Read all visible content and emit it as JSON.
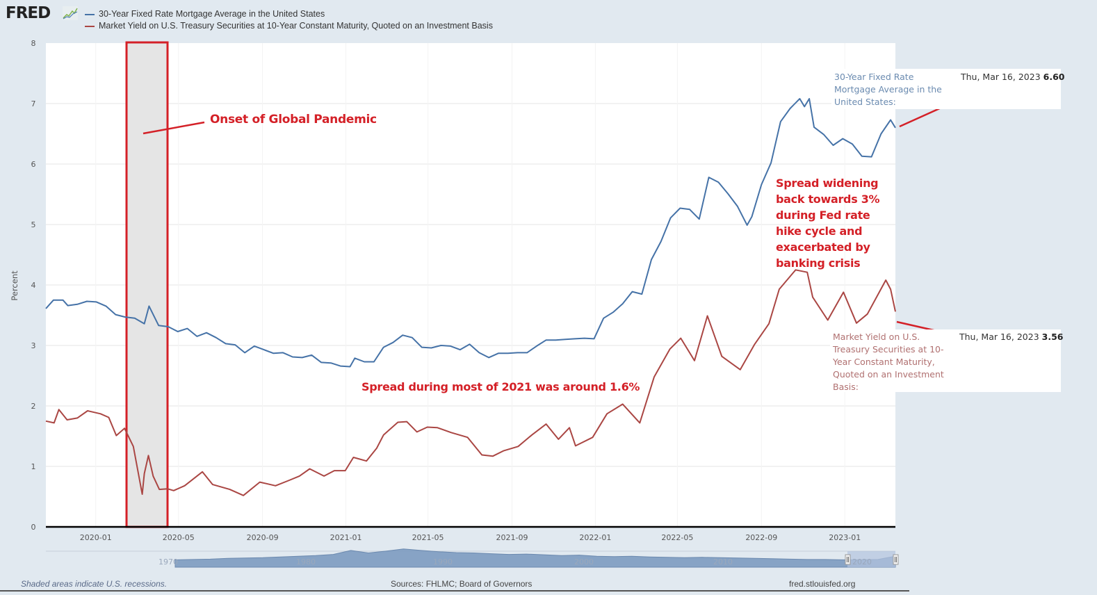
{
  "header": {
    "logo_text": "FRED",
    "logo_icon": "trend-line-chart-icon"
  },
  "legend": [
    {
      "label": "30-Year Fixed Rate Mortgage Average in the United States",
      "color": "#4572a7"
    },
    {
      "label": "Market Yield on U.S. Treasury Securities at 10-Year Constant Maturity, Quoted on an Investment Basis",
      "color": "#aa4643"
    }
  ],
  "tooltips": {
    "mortgage": {
      "name": "30-Year Fixed Rate Mortgage Average in the United States:",
      "date": "Thu, Mar 16, 2023",
      "value": "6.60"
    },
    "treasury": {
      "name": "Market Yield on U.S. Treasury Securities at 10-Year Constant Maturity, Quoted on an Investment Basis:",
      "date": "Thu, Mar 16, 2023",
      "value": "3.56"
    }
  },
  "annotations": {
    "pandemic": "Onset of Global Pandemic",
    "spread_2021": "Spread during most of 2021 was around 1.6%",
    "spread_widening": "Spread widening back towards 3% during Fed rate hike cycle and exacerbated by banking crisis",
    "highlight_color": "#d42027"
  },
  "footer": {
    "note": "Shaded areas indicate U.S. recessions.",
    "sources": "Sources: FHLMC; Board of Governors",
    "site": "fred.stlouisfed.org"
  },
  "navigator": {
    "labels": [
      "1970",
      "1980",
      "1990",
      "2000",
      "2010",
      "2020"
    ]
  },
  "chart_data": {
    "type": "line",
    "title": "",
    "xlabel": "",
    "ylabel": "Percent",
    "ylim": [
      0,
      8
    ],
    "yticks": [
      "0",
      "1",
      "2",
      "3",
      "4",
      "5",
      "6",
      "7",
      "8"
    ],
    "xlim": [
      "2019-10-20",
      "2023-03-16"
    ],
    "xticks": [
      "2020-01",
      "2020-05",
      "2020-09",
      "2021-01",
      "2021-05",
      "2021-09",
      "2022-01",
      "2022-05",
      "2022-09",
      "2023-01"
    ],
    "grid": true,
    "legend_position": "top-left",
    "recession": {
      "start": "2020-02-15",
      "end": "2020-04-15"
    },
    "series": [
      {
        "name": "30-Year Fixed Rate Mortgage Average in the United States",
        "color": "#4572a7",
        "points": [
          [
            "2019-10-20",
            3.61
          ],
          [
            "2019-10-31",
            3.75
          ],
          [
            "2019-11-14",
            3.75
          ],
          [
            "2019-11-21",
            3.66
          ],
          [
            "2019-12-05",
            3.68
          ],
          [
            "2019-12-19",
            3.73
          ],
          [
            "2020-01-02",
            3.72
          ],
          [
            "2020-01-16",
            3.65
          ],
          [
            "2020-01-30",
            3.51
          ],
          [
            "2020-02-13",
            3.47
          ],
          [
            "2020-02-27",
            3.45
          ],
          [
            "2020-03-12",
            3.36
          ],
          [
            "2020-03-19",
            3.65
          ],
          [
            "2020-04-02",
            3.33
          ],
          [
            "2020-04-16",
            3.31
          ],
          [
            "2020-04-30",
            3.23
          ],
          [
            "2020-05-14",
            3.28
          ],
          [
            "2020-05-28",
            3.15
          ],
          [
            "2020-06-11",
            3.21
          ],
          [
            "2020-06-25",
            3.13
          ],
          [
            "2020-07-09",
            3.03
          ],
          [
            "2020-07-23",
            3.01
          ],
          [
            "2020-08-06",
            2.88
          ],
          [
            "2020-08-20",
            2.99
          ],
          [
            "2020-09-03",
            2.93
          ],
          [
            "2020-09-17",
            2.87
          ],
          [
            "2020-10-01",
            2.88
          ],
          [
            "2020-10-15",
            2.81
          ],
          [
            "2020-10-29",
            2.8
          ],
          [
            "2020-11-12",
            2.84
          ],
          [
            "2020-11-26",
            2.72
          ],
          [
            "2020-12-10",
            2.71
          ],
          [
            "2020-12-24",
            2.66
          ],
          [
            "2021-01-07",
            2.65
          ],
          [
            "2021-01-14",
            2.79
          ],
          [
            "2021-01-28",
            2.73
          ],
          [
            "2021-02-11",
            2.73
          ],
          [
            "2021-02-25",
            2.97
          ],
          [
            "2021-03-11",
            3.05
          ],
          [
            "2021-03-25",
            3.17
          ],
          [
            "2021-04-08",
            3.13
          ],
          [
            "2021-04-22",
            2.97
          ],
          [
            "2021-05-06",
            2.96
          ],
          [
            "2021-05-20",
            3.0
          ],
          [
            "2021-06-03",
            2.99
          ],
          [
            "2021-06-17",
            2.93
          ],
          [
            "2021-07-01",
            3.02
          ],
          [
            "2021-07-15",
            2.88
          ],
          [
            "2021-07-29",
            2.8
          ],
          [
            "2021-08-12",
            2.87
          ],
          [
            "2021-08-26",
            2.87
          ],
          [
            "2021-09-09",
            2.88
          ],
          [
            "2021-09-23",
            2.88
          ],
          [
            "2021-10-07",
            2.99
          ],
          [
            "2021-10-21",
            3.09
          ],
          [
            "2021-11-04",
            3.09
          ],
          [
            "2021-11-18",
            3.1
          ],
          [
            "2021-12-02",
            3.11
          ],
          [
            "2021-12-16",
            3.12
          ],
          [
            "2021-12-30",
            3.11
          ],
          [
            "2022-01-13",
            3.45
          ],
          [
            "2022-01-27",
            3.55
          ],
          [
            "2022-02-10",
            3.69
          ],
          [
            "2022-02-24",
            3.89
          ],
          [
            "2022-03-10",
            3.85
          ],
          [
            "2022-03-24",
            4.42
          ],
          [
            "2022-04-07",
            4.72
          ],
          [
            "2022-04-21",
            5.11
          ],
          [
            "2022-05-05",
            5.27
          ],
          [
            "2022-05-19",
            5.25
          ],
          [
            "2022-06-02",
            5.09
          ],
          [
            "2022-06-16",
            5.78
          ],
          [
            "2022-06-30",
            5.7
          ],
          [
            "2022-07-14",
            5.51
          ],
          [
            "2022-07-28",
            5.3
          ],
          [
            "2022-08-11",
            4.99
          ],
          [
            "2022-08-18",
            5.13
          ],
          [
            "2022-09-01",
            5.66
          ],
          [
            "2022-09-15",
            6.02
          ],
          [
            "2022-09-29",
            6.7
          ],
          [
            "2022-10-13",
            6.92
          ],
          [
            "2022-10-27",
            7.08
          ],
          [
            "2022-11-03",
            6.95
          ],
          [
            "2022-11-10",
            7.08
          ],
          [
            "2022-11-17",
            6.61
          ],
          [
            "2022-12-01",
            6.49
          ],
          [
            "2022-12-15",
            6.31
          ],
          [
            "2022-12-29",
            6.42
          ],
          [
            "2023-01-12",
            6.33
          ],
          [
            "2023-01-26",
            6.13
          ],
          [
            "2023-02-09",
            6.12
          ],
          [
            "2023-02-23",
            6.5
          ],
          [
            "2023-03-09",
            6.73
          ],
          [
            "2023-03-16",
            6.6
          ]
        ]
      },
      {
        "name": "Market Yield on U.S. Treasury Securities at 10-Year Constant Maturity, Quoted on an Investment Basis",
        "color": "#aa4643",
        "points": [
          [
            "2019-10-20",
            1.75
          ],
          [
            "2019-11-01",
            1.72
          ],
          [
            "2019-11-08",
            1.94
          ],
          [
            "2019-11-20",
            1.77
          ],
          [
            "2019-12-05",
            1.8
          ],
          [
            "2019-12-20",
            1.92
          ],
          [
            "2020-01-08",
            1.87
          ],
          [
            "2020-01-20",
            1.81
          ],
          [
            "2020-01-31",
            1.51
          ],
          [
            "2020-02-12",
            1.63
          ],
          [
            "2020-02-25",
            1.33
          ],
          [
            "2020-03-09",
            0.54
          ],
          [
            "2020-03-12",
            0.88
          ],
          [
            "2020-03-18",
            1.18
          ],
          [
            "2020-03-25",
            0.84
          ],
          [
            "2020-04-03",
            0.62
          ],
          [
            "2020-04-15",
            0.63
          ],
          [
            "2020-04-24",
            0.6
          ],
          [
            "2020-05-10",
            0.68
          ],
          [
            "2020-06-05",
            0.91
          ],
          [
            "2020-06-20",
            0.7
          ],
          [
            "2020-07-15",
            0.62
          ],
          [
            "2020-08-04",
            0.52
          ],
          [
            "2020-08-28",
            0.74
          ],
          [
            "2020-09-20",
            0.68
          ],
          [
            "2020-10-10",
            0.77
          ],
          [
            "2020-10-25",
            0.84
          ],
          [
            "2020-11-09",
            0.96
          ],
          [
            "2020-11-30",
            0.84
          ],
          [
            "2020-12-15",
            0.93
          ],
          [
            "2020-12-31",
            0.93
          ],
          [
            "2021-01-12",
            1.15
          ],
          [
            "2021-01-31",
            1.09
          ],
          [
            "2021-02-15",
            1.3
          ],
          [
            "2021-02-25",
            1.52
          ],
          [
            "2021-03-18",
            1.73
          ],
          [
            "2021-03-31",
            1.74
          ],
          [
            "2021-04-15",
            1.57
          ],
          [
            "2021-04-30",
            1.65
          ],
          [
            "2021-05-15",
            1.64
          ],
          [
            "2021-06-04",
            1.56
          ],
          [
            "2021-06-28",
            1.48
          ],
          [
            "2021-07-19",
            1.19
          ],
          [
            "2021-08-04",
            1.17
          ],
          [
            "2021-08-20",
            1.26
          ],
          [
            "2021-09-10",
            1.33
          ],
          [
            "2021-09-30",
            1.52
          ],
          [
            "2021-10-21",
            1.7
          ],
          [
            "2021-11-08",
            1.45
          ],
          [
            "2021-11-24",
            1.64
          ],
          [
            "2021-12-03",
            1.34
          ],
          [
            "2021-12-28",
            1.48
          ],
          [
            "2022-01-18",
            1.87
          ],
          [
            "2022-02-10",
            2.03
          ],
          [
            "2022-03-07",
            1.72
          ],
          [
            "2022-03-28",
            2.48
          ],
          [
            "2022-04-20",
            2.94
          ],
          [
            "2022-05-06",
            3.12
          ],
          [
            "2022-05-26",
            2.75
          ],
          [
            "2022-06-14",
            3.49
          ],
          [
            "2022-07-05",
            2.82
          ],
          [
            "2022-08-01",
            2.6
          ],
          [
            "2022-08-22",
            3.02
          ],
          [
            "2022-09-12",
            3.36
          ],
          [
            "2022-09-27",
            3.93
          ],
          [
            "2022-10-21",
            4.25
          ],
          [
            "2022-11-07",
            4.21
          ],
          [
            "2022-11-15",
            3.8
          ],
          [
            "2022-12-07",
            3.42
          ],
          [
            "2022-12-30",
            3.88
          ],
          [
            "2023-01-18",
            3.37
          ],
          [
            "2023-02-03",
            3.52
          ],
          [
            "2023-03-02",
            4.08
          ],
          [
            "2023-03-09",
            3.93
          ],
          [
            "2023-03-16",
            3.56
          ]
        ]
      }
    ]
  }
}
